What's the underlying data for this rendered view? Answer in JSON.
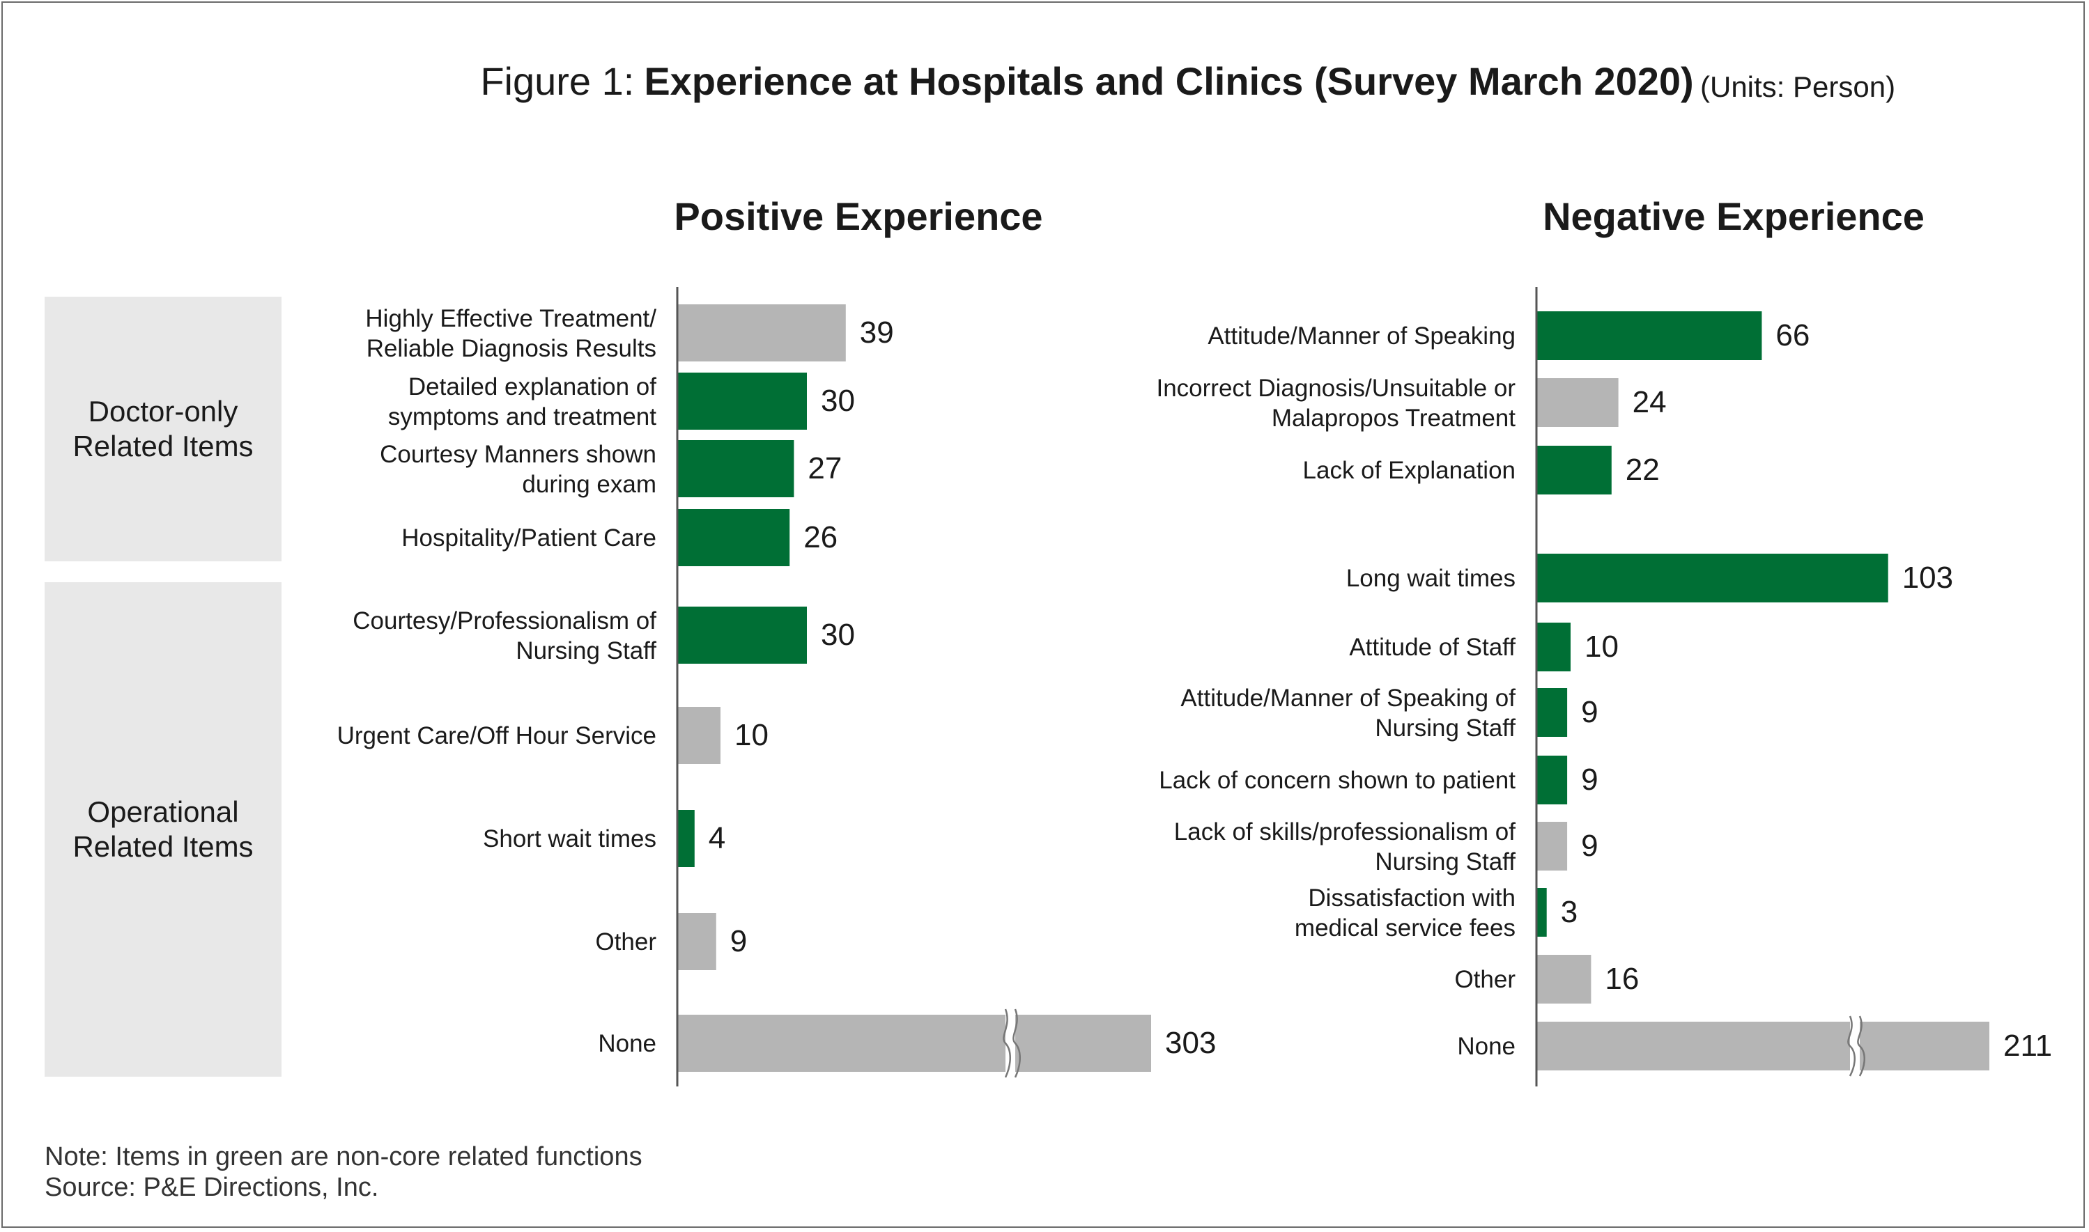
{
  "figure_title": {
    "prefix": "Figure 1:",
    "main": "Experience at Hospitals and Clinics (Survey March 2020)",
    "units": "(Units: Person)"
  },
  "groups": [
    {
      "lines": [
        "Doctor-only",
        "Related Items"
      ]
    },
    {
      "lines": [
        "Operational",
        "Related Items"
      ]
    }
  ],
  "colors": {
    "green": "#006F35",
    "gray": "#B5B5B5",
    "group_bg": "#E8E8E8",
    "axis": "#555555"
  },
  "notes": {
    "note": "Note:  Items in green are non-core related functions",
    "source": "Source:  P&E Directions, Inc."
  },
  "chart_data": [
    {
      "type": "bar",
      "orientation": "horizontal",
      "title": "Positive Experience",
      "units": "Person",
      "axis_break": true,
      "categories": [
        [
          "Highly Effective Treatment/",
          "Reliable Diagnosis Results"
        ],
        [
          "Detailed explanation of",
          "symptoms and treatment"
        ],
        [
          "Courtesy Manners shown",
          "during exam"
        ],
        [
          "Hospitality/Patient Care"
        ],
        [
          "Courtesy/Professionalism of",
          "Nursing Staff"
        ],
        [
          "Urgent Care/Off Hour Service"
        ],
        [
          "Short wait times"
        ],
        [
          "Other"
        ],
        [
          "None"
        ]
      ],
      "values": [
        39,
        30,
        27,
        26,
        30,
        10,
        4,
        9,
        303
      ],
      "colors": [
        "gray",
        "green",
        "green",
        "green",
        "green",
        "gray",
        "green",
        "gray",
        "gray"
      ],
      "broken": [
        false,
        false,
        false,
        false,
        false,
        false,
        false,
        false,
        true
      ]
    },
    {
      "type": "bar",
      "orientation": "horizontal",
      "title": "Negative Experience",
      "units": "Person",
      "axis_break": true,
      "categories": [
        [
          "Attitude/Manner of Speaking"
        ],
        [
          "Incorrect Diagnosis/Unsuitable or",
          "Malapropos Treatment"
        ],
        [
          "Lack of Explanation"
        ],
        [
          "Long wait times"
        ],
        [
          "Attitude of Staff"
        ],
        [
          "Attitude/Manner of Speaking of",
          "Nursing Staff"
        ],
        [
          "Lack of concern shown to patient"
        ],
        [
          "Lack of skills/professionalism of",
          "Nursing Staff"
        ],
        [
          "Dissatisfaction with",
          "medical service fees"
        ],
        [
          "Other"
        ],
        [
          "None"
        ]
      ],
      "values": [
        66,
        24,
        22,
        103,
        10,
        9,
        9,
        9,
        3,
        16,
        211
      ],
      "colors": [
        "green",
        "gray",
        "green",
        "green",
        "green",
        "green",
        "green",
        "gray",
        "green",
        "gray",
        "gray"
      ],
      "broken": [
        false,
        false,
        false,
        false,
        false,
        false,
        false,
        false,
        false,
        false,
        true
      ]
    }
  ]
}
